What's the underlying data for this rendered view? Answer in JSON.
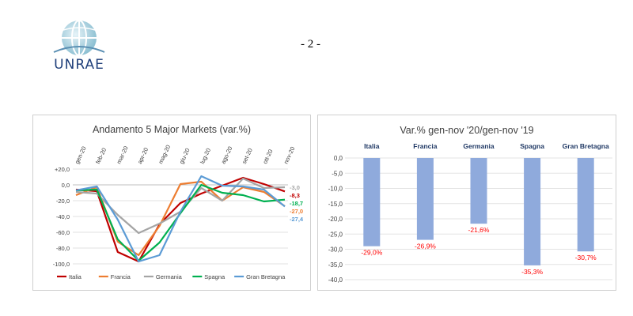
{
  "logo": {
    "text": "UNRAE"
  },
  "page_number": "- 2 -",
  "chart_data": [
    {
      "type": "line",
      "title": "Andamento 5 Major Markets (var.%)",
      "categories": [
        "gen-20",
        "feb-20",
        "mar-20",
        "apr-20",
        "mag-20",
        "giu-20",
        "lug-20",
        "ago-20",
        "set-20",
        "ott-20",
        "nov-20"
      ],
      "y_ticks": [
        "+20,0",
        "0,0",
        "-20,0",
        "-40,0",
        "-60,0",
        "-80,0",
        "-100,0"
      ],
      "ylim": [
        -100,
        20
      ],
      "grid": true,
      "legend_position": "bottom",
      "series": [
        {
          "name": "Italia",
          "color": "#c00000",
          "values": [
            -6,
            -8,
            -85,
            -97,
            -50,
            -23,
            -11,
            -1,
            9,
            1,
            -8.3
          ],
          "end_label": "-8,3"
        },
        {
          "name": "Francia",
          "color": "#ed7d31",
          "values": [
            -13,
            -3,
            -72,
            -89,
            -52,
            1,
            4,
            -20,
            -3,
            -9,
            -27.0
          ],
          "end_label": "-27,0"
        },
        {
          "name": "Germania",
          "color": "#a5a5a5",
          "values": [
            -9,
            -11,
            -38,
            -61,
            -49,
            -34,
            -4,
            -20,
            8,
            -4,
            -3.0
          ],
          "end_label": "-3,0"
        },
        {
          "name": "Spagna",
          "color": "#00b050",
          "values": [
            -7,
            -6,
            -69,
            -96,
            -73,
            -36,
            0,
            -10,
            -13,
            -21,
            -18.7
          ],
          "end_label": "-18,7"
        },
        {
          "name": "Gran Bretagna",
          "color": "#5b9bd5",
          "values": [
            -7,
            -2,
            -44,
            -97,
            -89,
            -34,
            11,
            -1,
            -2,
            -6,
            -27.4
          ],
          "end_label": "-27,4"
        }
      ]
    },
    {
      "type": "bar",
      "title": "Var.% gen-nov '20/gen-nov '19",
      "categories": [
        "Italia",
        "Francia",
        "Germania",
        "Spagna",
        "Gran Bretagna"
      ],
      "values": [
        -29.0,
        -26.9,
        -21.6,
        -35.3,
        -30.7
      ],
      "data_labels": [
        "-29,0%",
        "-26,9%",
        "-21,6%",
        "-35,3%",
        "-30,7%"
      ],
      "y_ticks": [
        "0,0",
        "-5,0",
        "-10,0",
        "-15,0",
        "-20,0",
        "-25,0",
        "-30,0",
        "-35,0",
        "-40,0"
      ],
      "ylim": [
        -40,
        0
      ],
      "grid": true,
      "bar_color": "#8faadc",
      "label_color": "#ff0000"
    }
  ]
}
